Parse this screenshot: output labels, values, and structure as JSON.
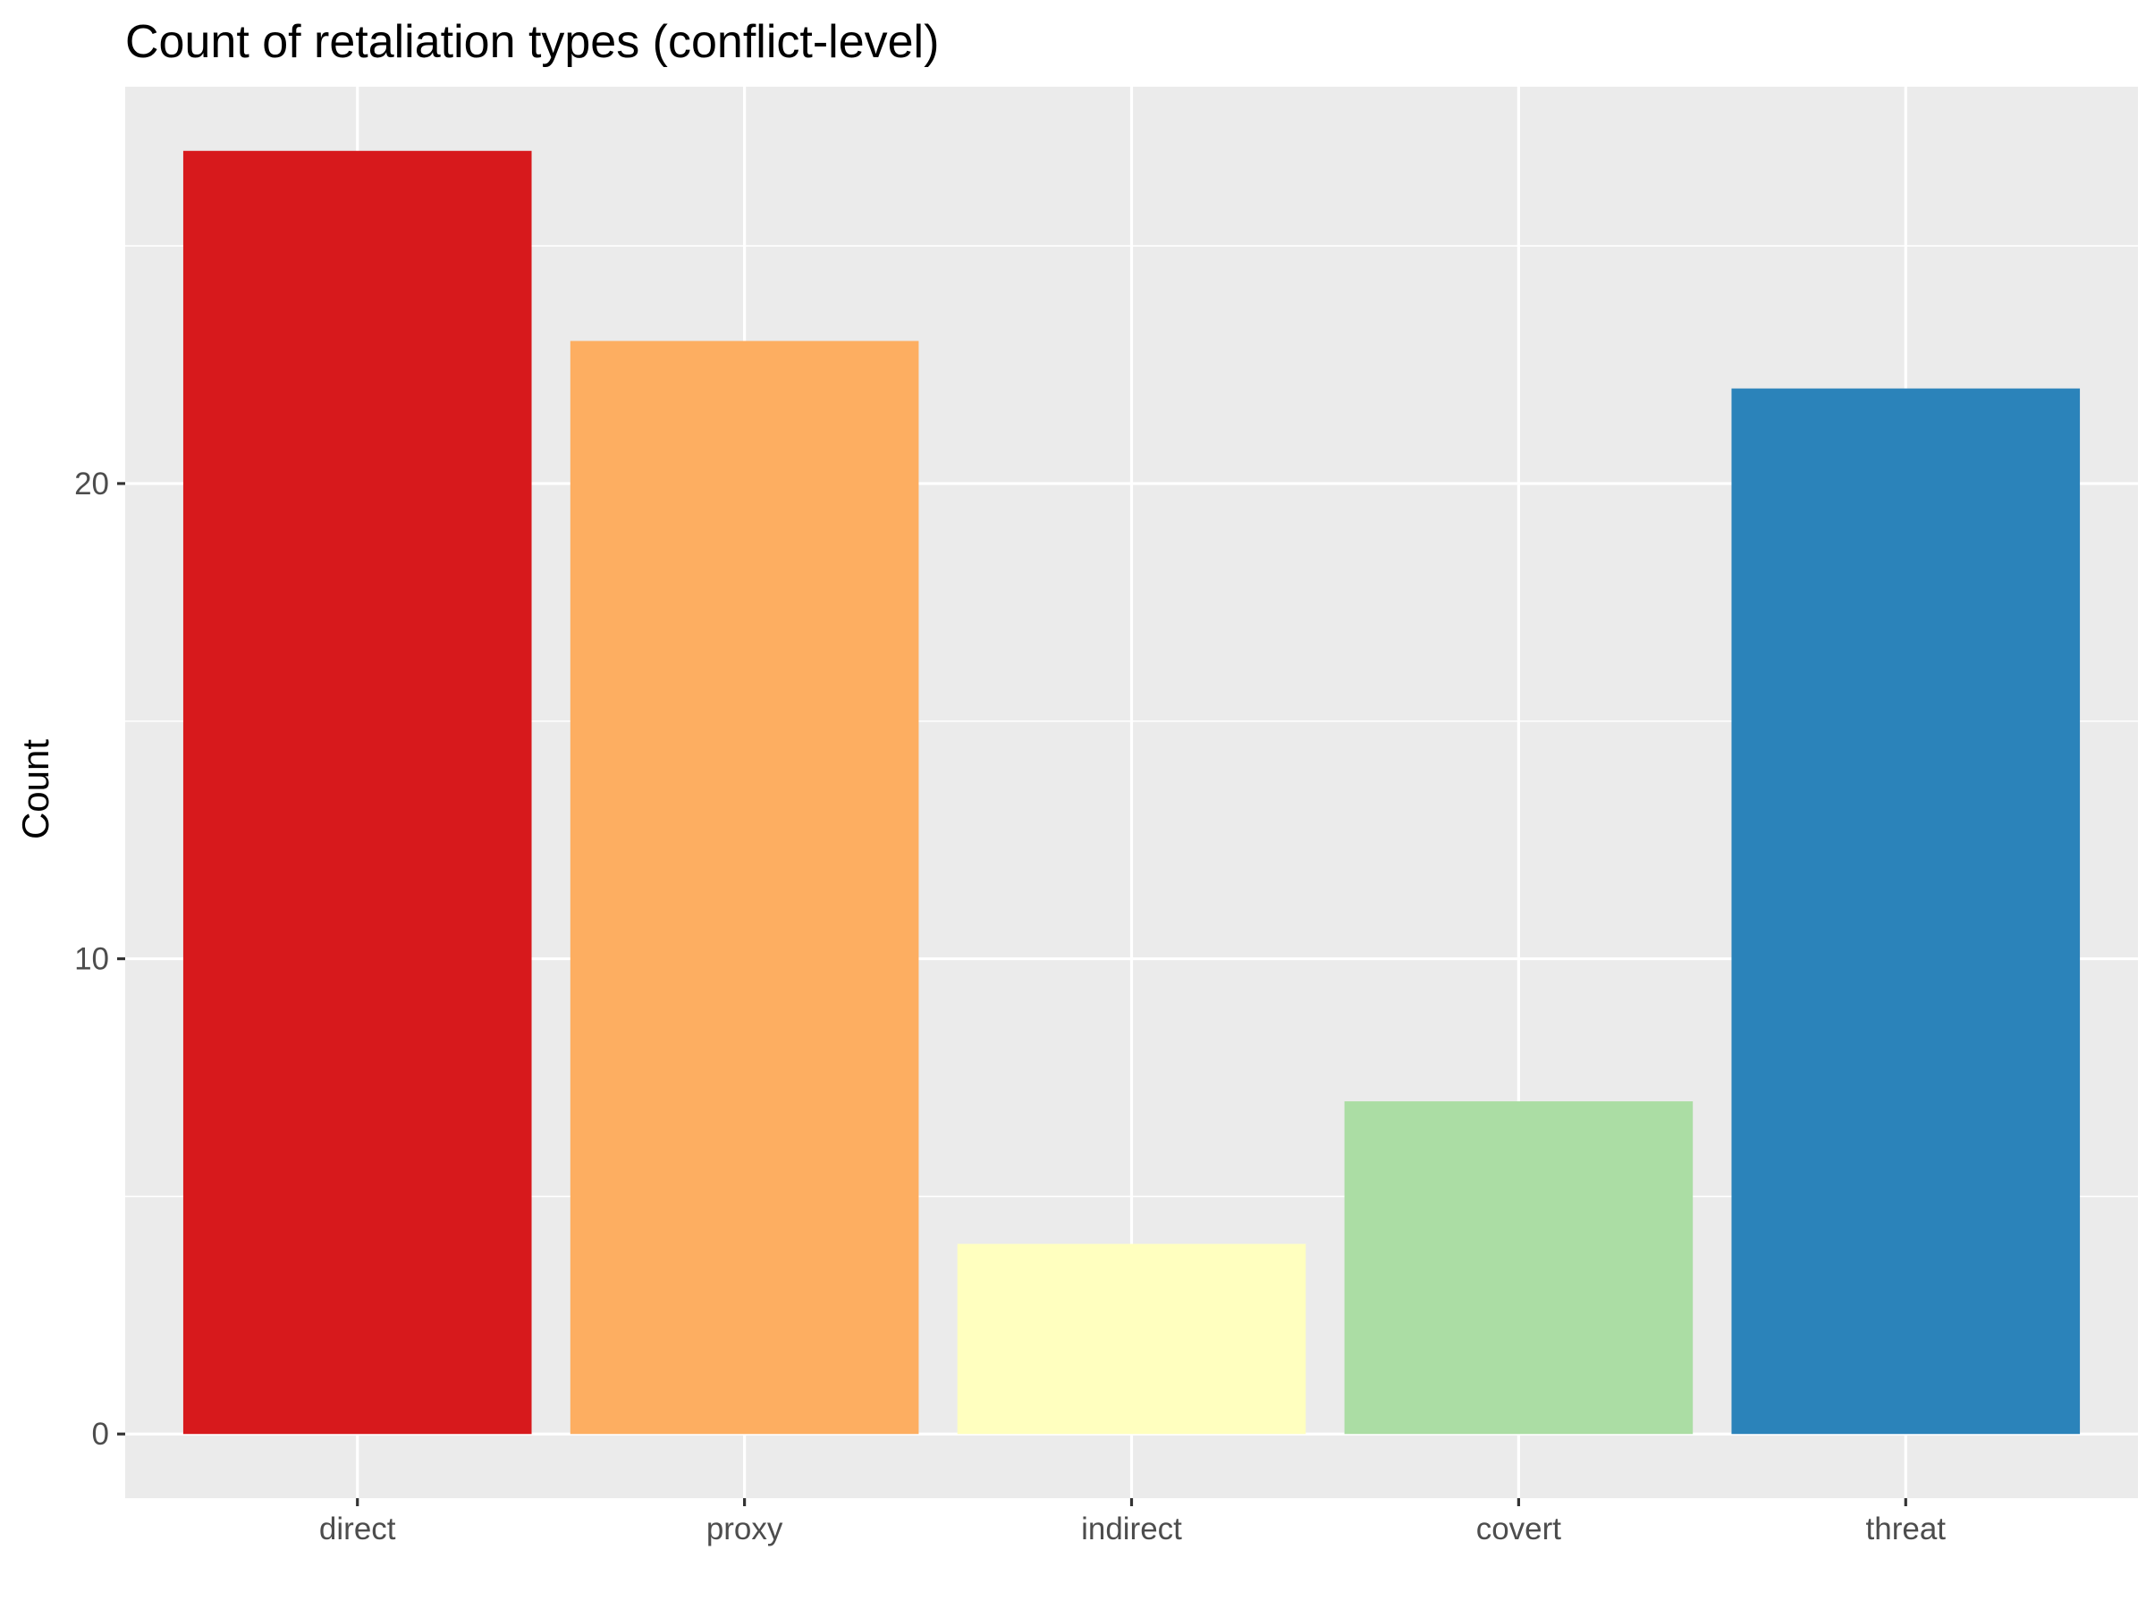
{
  "chart_data": {
    "type": "bar",
    "title": "Count of retaliation types (conflict-level)",
    "xlabel": "",
    "ylabel": "Count",
    "categories": [
      "direct",
      "proxy",
      "indirect",
      "covert",
      "threat"
    ],
    "values": [
      27,
      23,
      4,
      7,
      22
    ],
    "colors": [
      "#d7191c",
      "#fdae61",
      "#ffffbf",
      "#abdda4",
      "#2b83ba"
    ],
    "ylim": [
      -1.35,
      28.35
    ],
    "yticks": [
      0,
      10,
      20
    ],
    "ytick_labels": [
      "0",
      "10",
      "20"
    ],
    "grid": true,
    "panel_background": "#ebebeb",
    "grid_color": "#ffffff",
    "legend": "none"
  }
}
